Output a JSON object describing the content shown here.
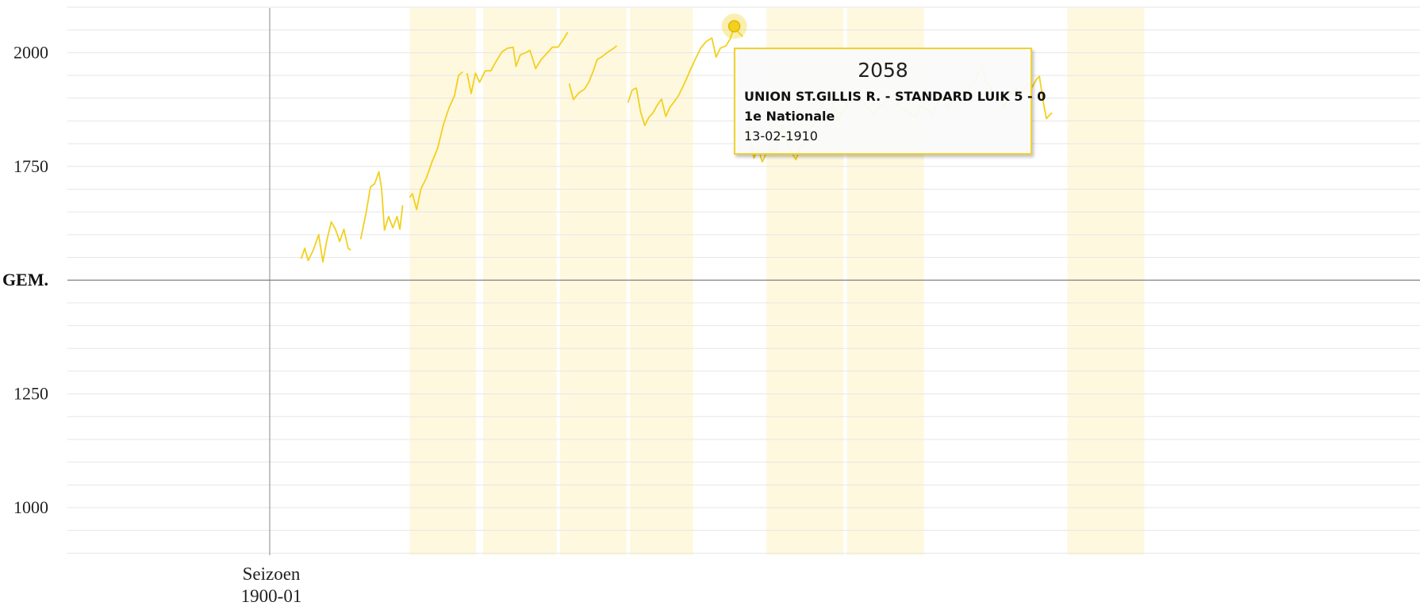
{
  "chart_data": {
    "type": "line",
    "y_ticks": [
      1000,
      1250,
      1750,
      2000
    ],
    "ylim": [
      900,
      2100
    ],
    "mean_line": {
      "label": "GEM.",
      "value": 1500
    },
    "x_start_label": {
      "line1": "Seizoen",
      "line2": "1900-01"
    },
    "grid": true,
    "shaded_seasons": [
      [
        2.0,
        2.95
      ],
      [
        3.05,
        4.1
      ],
      [
        4.15,
        5.1
      ],
      [
        5.15,
        6.05
      ],
      [
        7.1,
        8.2
      ],
      [
        8.25,
        9.35
      ],
      [
        11.4,
        12.5
      ]
    ],
    "series": [
      {
        "color": "#f2d01e",
        "segments": [
          [
            [
              0.45,
              1547
            ],
            [
              0.5,
              1570
            ],
            [
              0.55,
              1543
            ],
            [
              0.62,
              1565
            ],
            [
              0.7,
              1600
            ],
            [
              0.76,
              1540
            ],
            [
              0.82,
              1590
            ],
            [
              0.88,
              1628
            ],
            [
              0.94,
              1612
            ],
            [
              1.0,
              1585
            ],
            [
              1.06,
              1612
            ],
            [
              1.12,
              1570
            ],
            [
              1.16,
              1566
            ]
          ],
          [
            [
              1.3,
              1590
            ],
            [
              1.38,
              1650
            ],
            [
              1.44,
              1705
            ],
            [
              1.5,
              1712
            ],
            [
              1.56,
              1738
            ],
            [
              1.6,
              1700
            ],
            [
              1.64,
              1610
            ],
            [
              1.7,
              1640
            ],
            [
              1.76,
              1615
            ],
            [
              1.82,
              1640
            ],
            [
              1.86,
              1612
            ],
            [
              1.9,
              1665
            ]
          ],
          [
            [
              2.0,
              1682
            ],
            [
              2.04,
              1690
            ],
            [
              2.1,
              1655
            ],
            [
              2.16,
              1700
            ],
            [
              2.24,
              1725
            ],
            [
              2.32,
              1760
            ],
            [
              2.4,
              1790
            ],
            [
              2.48,
              1840
            ],
            [
              2.56,
              1878
            ],
            [
              2.64,
              1905
            ],
            [
              2.7,
              1950
            ],
            [
              2.76,
              1958
            ]
          ],
          [
            [
              2.82,
              1955
            ],
            [
              2.88,
              1910
            ],
            [
              2.94,
              1955
            ],
            [
              3.0,
              1935
            ],
            [
              3.08,
              1960
            ],
            [
              3.16,
              1960
            ],
            [
              3.24,
              1982
            ],
            [
              3.32,
              2002
            ],
            [
              3.4,
              2010
            ],
            [
              3.48,
              2012
            ],
            [
              3.52,
              1970
            ],
            [
              3.58,
              1995
            ],
            [
              3.66,
              2000
            ],
            [
              3.72,
              2005
            ],
            [
              3.8,
              1965
            ],
            [
              3.88,
              1985
            ],
            [
              3.96,
              1998
            ],
            [
              4.04,
              2012
            ],
            [
              4.12,
              2012
            ],
            [
              4.2,
              2030
            ],
            [
              4.26,
              2045
            ]
          ],
          [
            [
              4.28,
              1932
            ],
            [
              4.34,
              1897
            ],
            [
              4.42,
              1912
            ],
            [
              4.5,
              1920
            ],
            [
              4.56,
              1935
            ],
            [
              4.62,
              1958
            ],
            [
              4.68,
              1985
            ],
            [
              4.74,
              1990
            ],
            [
              4.82,
              2000
            ],
            [
              4.9,
              2008
            ],
            [
              4.96,
              2015
            ]
          ],
          [
            [
              5.12,
              1890
            ],
            [
              5.18,
              1918
            ],
            [
              5.24,
              1922
            ],
            [
              5.3,
              1870
            ],
            [
              5.36,
              1840
            ],
            [
              5.42,
              1858
            ],
            [
              5.48,
              1868
            ],
            [
              5.54,
              1885
            ],
            [
              5.6,
              1898
            ],
            [
              5.66,
              1860
            ],
            [
              5.72,
              1880
            ],
            [
              5.78,
              1892
            ],
            [
              5.84,
              1905
            ],
            [
              5.92,
              1930
            ],
            [
              6.0,
              1958
            ],
            [
              6.08,
              1985
            ],
            [
              6.16,
              2010
            ],
            [
              6.24,
              2025
            ],
            [
              6.32,
              2032
            ],
            [
              6.38,
              1990
            ],
            [
              6.44,
              2010
            ],
            [
              6.52,
              2015
            ],
            [
              6.58,
              2030
            ],
            [
              6.64,
              2058
            ],
            [
              6.7,
              2045
            ],
            [
              6.76,
              2035
            ]
          ],
          [
            [
              6.8,
              1880
            ],
            [
              6.86,
              1820
            ],
            [
              6.92,
              1768
            ],
            [
              6.98,
              1790
            ],
            [
              7.04,
              1760
            ],
            [
              7.1,
              1780
            ],
            [
              7.16,
              1792
            ],
            [
              7.22,
              1780
            ],
            [
              7.28,
              1820
            ],
            [
              7.34,
              1842
            ],
            [
              7.4,
              1800
            ],
            [
              7.46,
              1780
            ],
            [
              7.52,
              1765
            ],
            [
              7.58,
              1790
            ],
            [
              7.64,
              1805
            ],
            [
              7.7,
              1820
            ],
            [
              7.76,
              1840
            ],
            [
              7.82,
              1860
            ],
            [
              7.88,
              1880
            ],
            [
              7.94,
              1900
            ],
            [
              8.0,
              1910
            ],
            [
              8.06,
              1880
            ],
            [
              8.12,
              1850
            ],
            [
              8.18,
              1870
            ],
            [
              8.24,
              1882
            ],
            [
              8.3,
              1898
            ],
            [
              8.36,
              1890
            ],
            [
              8.42,
              1905
            ],
            [
              8.5,
              1890
            ],
            [
              8.56,
              1878
            ],
            [
              8.62,
              1865
            ],
            [
              8.7,
              1880
            ],
            [
              8.78,
              1890
            ],
            [
              8.86,
              1898
            ],
            [
              8.94,
              1908
            ],
            [
              9.0,
              1880
            ],
            [
              9.06,
              1875
            ],
            [
              9.14,
              1868
            ],
            [
              9.22,
              1858
            ],
            [
              9.3,
              1883
            ],
            [
              9.38,
              1878
            ],
            [
              9.46,
              1865
            ],
            [
              9.54,
              1888
            ],
            [
              9.62,
              1905
            ],
            [
              9.7,
              1878
            ],
            [
              9.76,
              1895
            ],
            [
              9.84,
              1900
            ],
            [
              9.9,
              1892
            ],
            [
              9.96,
              1910
            ],
            [
              10.02,
              1925
            ],
            [
              10.08,
              1938
            ],
            [
              10.14,
              1958
            ],
            [
              10.18,
              1972
            ],
            [
              10.24,
              1935
            ],
            [
              10.3,
              1925
            ],
            [
              10.36,
              1898
            ],
            [
              10.44,
              1912
            ],
            [
              10.5,
              1878
            ],
            [
              10.56,
              1910
            ],
            [
              10.62,
              1912
            ],
            [
              10.68,
              1922
            ],
            [
              10.72,
              1898
            ],
            [
              10.78,
              1918
            ],
            [
              10.84,
              1932
            ],
            [
              10.9,
              1925
            ],
            [
              10.96,
              1942
            ],
            [
              11.0,
              1948
            ],
            [
              11.06,
              1888
            ],
            [
              11.1,
              1855
            ],
            [
              11.14,
              1862
            ],
            [
              11.18,
              1868
            ]
          ]
        ]
      }
    ],
    "highlight": {
      "x": 6.64,
      "y": 2058
    }
  },
  "tooltip": {
    "value": "2058",
    "match": "UNION ST.GILLIS R. - STANDARD LUIK 5 - 0",
    "competition": "1e Nationale",
    "date": "13-02-1910"
  }
}
